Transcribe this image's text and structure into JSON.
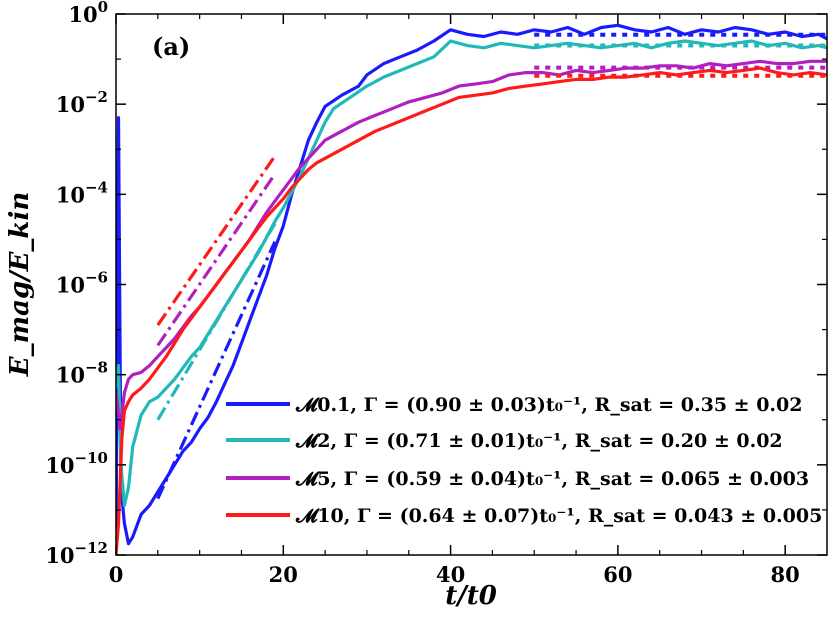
{
  "chart_data": {
    "type": "line",
    "title": "",
    "panel_label": "(a)",
    "xlabel": "t/t0",
    "ylabel": "E_mag/E_kin",
    "xlim": [
      0,
      85
    ],
    "ylim_log10": [
      -12,
      0
    ],
    "x_ticks": [
      0,
      20,
      40,
      60,
      80
    ],
    "y_ticks_log10": [
      -12,
      -10,
      -8,
      -6,
      -4,
      -2,
      0
    ],
    "y_tick_labels": [
      "10",
      "10",
      "10",
      "10",
      "10",
      "10",
      "10"
    ],
    "y_tick_exponents": [
      "−12",
      "−10",
      "−8",
      "−6",
      "−4",
      "−2",
      "0"
    ],
    "series": [
      {
        "name": "M0.1",
        "legend": "𝓜0.1, Γ = (0.90 ± 0.03)t₀⁻¹, R_sat = 0.35 ± 0.02",
        "color": "#1a1aff",
        "points": [
          [
            0,
            -11.9
          ],
          [
            0.3,
            -2.3
          ],
          [
            0.6,
            -10.5
          ],
          [
            1,
            -11.3
          ],
          [
            1.5,
            -11.75
          ],
          [
            2,
            -11.6
          ],
          [
            3,
            -11.1
          ],
          [
            4,
            -10.9
          ],
          [
            5,
            -10.6
          ],
          [
            6,
            -10.3
          ],
          [
            7,
            -10.0
          ],
          [
            8,
            -9.7
          ],
          [
            9,
            -9.5
          ],
          [
            10,
            -9.2
          ],
          [
            11,
            -8.95
          ],
          [
            12,
            -8.6
          ],
          [
            13,
            -8.2
          ],
          [
            14,
            -7.8
          ],
          [
            15,
            -7.3
          ],
          [
            16,
            -6.8
          ],
          [
            17,
            -6.3
          ],
          [
            18,
            -5.8
          ],
          [
            19,
            -5.2
          ],
          [
            20,
            -4.7
          ],
          [
            21,
            -4.0
          ],
          [
            22,
            -3.4
          ],
          [
            23,
            -2.8
          ],
          [
            24,
            -2.4
          ],
          [
            25,
            -2.05
          ],
          [
            27,
            -1.8
          ],
          [
            29,
            -1.6
          ],
          [
            30,
            -1.35
          ],
          [
            32,
            -1.1
          ],
          [
            34,
            -0.95
          ],
          [
            36,
            -0.8
          ],
          [
            38,
            -0.6
          ],
          [
            40,
            -0.35
          ],
          [
            42,
            -0.45
          ],
          [
            44,
            -0.5
          ],
          [
            46,
            -0.4
          ],
          [
            48,
            -0.45
          ],
          [
            50,
            -0.35
          ],
          [
            52,
            -0.4
          ],
          [
            54,
            -0.3
          ],
          [
            56,
            -0.45
          ],
          [
            58,
            -0.3
          ],
          [
            60,
            -0.25
          ],
          [
            62,
            -0.35
          ],
          [
            64,
            -0.4
          ],
          [
            66,
            -0.3
          ],
          [
            68,
            -0.45
          ],
          [
            70,
            -0.35
          ],
          [
            72,
            -0.4
          ],
          [
            74,
            -0.3
          ],
          [
            76,
            -0.35
          ],
          [
            78,
            -0.45
          ],
          [
            80,
            -0.4
          ],
          [
            82,
            -0.5
          ],
          [
            84,
            -0.45
          ],
          [
            85,
            -0.55
          ]
        ],
        "fit": {
          "x": [
            5,
            19
          ],
          "y_log10": [
            -10.75,
            -5.05
          ]
        },
        "saturation": {
          "x": [
            50,
            85
          ],
          "y_log10": -0.46
        }
      },
      {
        "name": "M2",
        "legend": "𝓜2, Γ = (0.71 ± 0.01)t₀⁻¹, R_sat = 0.20 ± 0.02",
        "color": "#20b8b8",
        "points": [
          [
            0,
            -8.3
          ],
          [
            0.3,
            -7.8
          ],
          [
            0.6,
            -10.0
          ],
          [
            1,
            -10.9
          ],
          [
            1.5,
            -10.5
          ],
          [
            2,
            -9.6
          ],
          [
            3,
            -8.9
          ],
          [
            4,
            -8.6
          ],
          [
            5,
            -8.5
          ],
          [
            6,
            -8.3
          ],
          [
            7,
            -8.1
          ],
          [
            8,
            -7.85
          ],
          [
            9,
            -7.6
          ],
          [
            10,
            -7.4
          ],
          [
            11,
            -7.1
          ],
          [
            12,
            -6.8
          ],
          [
            13,
            -6.5
          ],
          [
            14,
            -6.2
          ],
          [
            15,
            -5.9
          ],
          [
            16,
            -5.6
          ],
          [
            17,
            -5.3
          ],
          [
            18,
            -4.95
          ],
          [
            19,
            -4.6
          ],
          [
            20,
            -4.3
          ],
          [
            21,
            -3.95
          ],
          [
            22,
            -3.6
          ],
          [
            23,
            -3.2
          ],
          [
            24,
            -2.8
          ],
          [
            25,
            -2.4
          ],
          [
            26,
            -2.1
          ],
          [
            28,
            -1.85
          ],
          [
            30,
            -1.6
          ],
          [
            32,
            -1.4
          ],
          [
            34,
            -1.25
          ],
          [
            36,
            -1.1
          ],
          [
            38,
            -0.95
          ],
          [
            40,
            -0.6
          ],
          [
            42,
            -0.7
          ],
          [
            44,
            -0.75
          ],
          [
            46,
            -0.65
          ],
          [
            48,
            -0.7
          ],
          [
            50,
            -0.75
          ],
          [
            52,
            -0.7
          ],
          [
            54,
            -0.65
          ],
          [
            56,
            -0.7
          ],
          [
            58,
            -0.75
          ],
          [
            60,
            -0.7
          ],
          [
            62,
            -0.65
          ],
          [
            64,
            -0.75
          ],
          [
            66,
            -0.65
          ],
          [
            68,
            -0.6
          ],
          [
            70,
            -0.65
          ],
          [
            72,
            -0.7
          ],
          [
            74,
            -0.65
          ],
          [
            76,
            -0.6
          ],
          [
            78,
            -0.7
          ],
          [
            80,
            -0.65
          ],
          [
            82,
            -0.75
          ],
          [
            84,
            -0.7
          ],
          [
            85,
            -0.75
          ]
        ],
        "fit": {
          "x": [
            5,
            19
          ],
          "y_log10": [
            -9.0,
            -4.65
          ]
        },
        "saturation": {
          "x": [
            50,
            85
          ],
          "y_log10": -0.7
        }
      },
      {
        "name": "M5",
        "legend": "𝓜5, Γ = (0.59 ± 0.04)t₀⁻¹, R_sat = 0.065 ± 0.003",
        "color": "#b020c0",
        "points": [
          [
            0,
            -8.4
          ],
          [
            0.5,
            -9.2
          ],
          [
            1,
            -8.4
          ],
          [
            1.5,
            -8.1
          ],
          [
            2,
            -8.0
          ],
          [
            3,
            -7.95
          ],
          [
            4,
            -7.8
          ],
          [
            5,
            -7.6
          ],
          [
            6,
            -7.4
          ],
          [
            7,
            -7.2
          ],
          [
            8,
            -6.95
          ],
          [
            9,
            -6.7
          ],
          [
            10,
            -6.5
          ],
          [
            11,
            -6.25
          ],
          [
            12,
            -6.0
          ],
          [
            13,
            -5.75
          ],
          [
            14,
            -5.5
          ],
          [
            15,
            -5.25
          ],
          [
            16,
            -5.0
          ],
          [
            17,
            -4.7
          ],
          [
            18,
            -4.4
          ],
          [
            19,
            -4.15
          ],
          [
            20,
            -3.9
          ],
          [
            21,
            -3.65
          ],
          [
            22,
            -3.4
          ],
          [
            23,
            -3.2
          ],
          [
            24,
            -3.0
          ],
          [
            25,
            -2.8
          ],
          [
            27,
            -2.6
          ],
          [
            29,
            -2.4
          ],
          [
            31,
            -2.25
          ],
          [
            33,
            -2.1
          ],
          [
            35,
            -1.95
          ],
          [
            37,
            -1.85
          ],
          [
            39,
            -1.75
          ],
          [
            41,
            -1.6
          ],
          [
            43,
            -1.55
          ],
          [
            45,
            -1.5
          ],
          [
            47,
            -1.35
          ],
          [
            49,
            -1.3
          ],
          [
            51,
            -1.3
          ],
          [
            53,
            -1.35
          ],
          [
            55,
            -1.25
          ],
          [
            57,
            -1.3
          ],
          [
            59,
            -1.25
          ],
          [
            61,
            -1.2
          ],
          [
            63,
            -1.2
          ],
          [
            65,
            -1.15
          ],
          [
            67,
            -1.15
          ],
          [
            69,
            -1.2
          ],
          [
            71,
            -1.1
          ],
          [
            73,
            -1.15
          ],
          [
            75,
            -1.1
          ],
          [
            77,
            -1.05
          ],
          [
            79,
            -1.1
          ],
          [
            81,
            -1.1
          ],
          [
            83,
            -1.05
          ],
          [
            85,
            -1.05
          ]
        ],
        "fit": {
          "x": [
            5,
            19
          ],
          "y_log10": [
            -7.35,
            -3.55
          ]
        },
        "saturation": {
          "x": [
            50,
            85
          ],
          "y_log10": -1.19
        }
      },
      {
        "name": "M10",
        "legend": "𝓜10, Γ = (0.64 ± 0.07)t₀⁻¹, R_sat = 0.043 ± 0.005",
        "color": "#ff1a1a",
        "points": [
          [
            0,
            -12.0
          ],
          [
            0.3,
            -11.3
          ],
          [
            0.7,
            -9.4
          ],
          [
            1,
            -8.8
          ],
          [
            1.5,
            -8.6
          ],
          [
            2,
            -8.45
          ],
          [
            3,
            -8.3
          ],
          [
            4,
            -8.1
          ],
          [
            5,
            -7.85
          ],
          [
            6,
            -7.6
          ],
          [
            7,
            -7.3
          ],
          [
            8,
            -7.0
          ],
          [
            9,
            -6.75
          ],
          [
            10,
            -6.5
          ],
          [
            11,
            -6.25
          ],
          [
            12,
            -6.0
          ],
          [
            13,
            -5.75
          ],
          [
            14,
            -5.5
          ],
          [
            15,
            -5.25
          ],
          [
            16,
            -5.0
          ],
          [
            17,
            -4.75
          ],
          [
            18,
            -4.5
          ],
          [
            19,
            -4.3
          ],
          [
            20,
            -4.1
          ],
          [
            21,
            -3.85
          ],
          [
            22,
            -3.65
          ],
          [
            23,
            -3.45
          ],
          [
            24,
            -3.3
          ],
          [
            25,
            -3.2
          ],
          [
            27,
            -3.0
          ],
          [
            29,
            -2.8
          ],
          [
            31,
            -2.6
          ],
          [
            33,
            -2.45
          ],
          [
            35,
            -2.3
          ],
          [
            37,
            -2.15
          ],
          [
            39,
            -2.0
          ],
          [
            41,
            -1.85
          ],
          [
            43,
            -1.8
          ],
          [
            45,
            -1.75
          ],
          [
            47,
            -1.65
          ],
          [
            49,
            -1.6
          ],
          [
            51,
            -1.55
          ],
          [
            53,
            -1.5
          ],
          [
            55,
            -1.45
          ],
          [
            57,
            -1.45
          ],
          [
            59,
            -1.4
          ],
          [
            61,
            -1.4
          ],
          [
            63,
            -1.35
          ],
          [
            65,
            -1.3
          ],
          [
            67,
            -1.35
          ],
          [
            69,
            -1.3
          ],
          [
            71,
            -1.25
          ],
          [
            73,
            -1.3
          ],
          [
            75,
            -1.25
          ],
          [
            77,
            -1.2
          ],
          [
            79,
            -1.3
          ],
          [
            81,
            -1.35
          ],
          [
            83,
            -1.3
          ],
          [
            85,
            -1.35
          ]
        ],
        "fit": {
          "x": [
            5,
            19
          ],
          "y_log10": [
            -6.9,
            -3.15
          ]
        },
        "saturation": {
          "x": [
            50,
            85
          ],
          "y_log10": -1.37
        }
      }
    ],
    "legend_position": "bottom-right"
  }
}
